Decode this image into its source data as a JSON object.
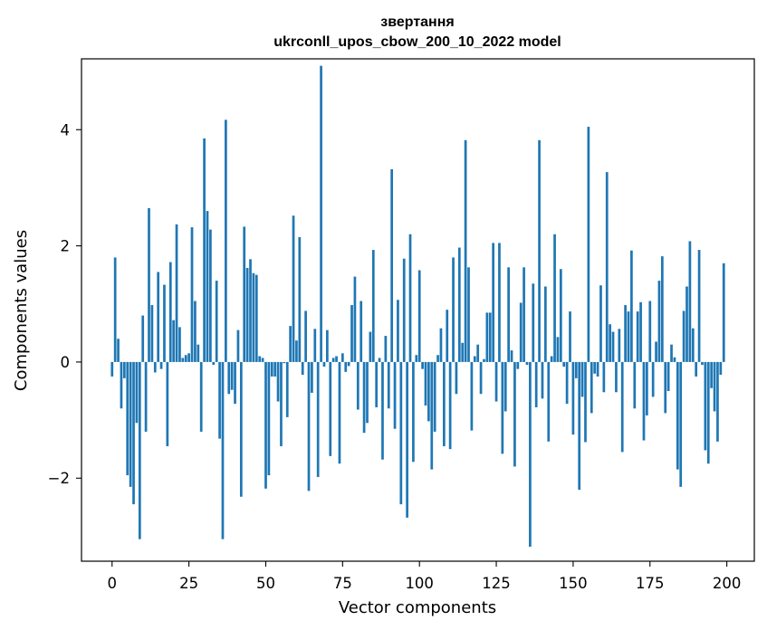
{
  "chart_data": {
    "type": "bar",
    "title_line1": "звертання",
    "title_line2": "ukrconll_upos_cbow_200_10_2022 model",
    "xlabel": "Vector components",
    "ylabel": "Components values",
    "xlim": [
      -9.95,
      208.95
    ],
    "ylim": [
      -3.43,
      5.22
    ],
    "xticks": [
      0,
      25,
      50,
      75,
      100,
      125,
      150,
      175,
      200
    ],
    "xtick_labels": [
      "0",
      "25",
      "50",
      "75",
      "100",
      "125",
      "150",
      "175",
      "200"
    ],
    "yticks": [
      -2,
      0,
      2,
      4
    ],
    "ytick_labels": [
      "−2",
      "0",
      "2",
      "4"
    ],
    "bar_color": "#1f77b4",
    "x": [
      0,
      1,
      2,
      3,
      4,
      5,
      6,
      7,
      8,
      9,
      10,
      11,
      12,
      13,
      14,
      15,
      16,
      17,
      18,
      19,
      20,
      21,
      22,
      23,
      24,
      25,
      26,
      27,
      28,
      29,
      30,
      31,
      32,
      33,
      34,
      35,
      36,
      37,
      38,
      39,
      40,
      41,
      42,
      43,
      44,
      45,
      46,
      47,
      48,
      49,
      50,
      51,
      52,
      53,
      54,
      55,
      56,
      57,
      58,
      59,
      60,
      61,
      62,
      63,
      64,
      65,
      66,
      67,
      68,
      69,
      70,
      71,
      72,
      73,
      74,
      75,
      76,
      77,
      78,
      79,
      80,
      81,
      82,
      83,
      84,
      85,
      86,
      87,
      88,
      89,
      90,
      91,
      92,
      93,
      94,
      95,
      96,
      97,
      98,
      99,
      100,
      101,
      102,
      103,
      104,
      105,
      106,
      107,
      108,
      109,
      110,
      111,
      112,
      113,
      114,
      115,
      116,
      117,
      118,
      119,
      120,
      121,
      122,
      123,
      124,
      125,
      126,
      127,
      128,
      129,
      130,
      131,
      132,
      133,
      134,
      135,
      136,
      137,
      138,
      139,
      140,
      141,
      142,
      143,
      144,
      145,
      146,
      147,
      148,
      149,
      150,
      151,
      152,
      153,
      154,
      155,
      156,
      157,
      158,
      159,
      160,
      161,
      162,
      163,
      164,
      165,
      166,
      167,
      168,
      169,
      170,
      171,
      172,
      173,
      174,
      175,
      176,
      177,
      178,
      179,
      180,
      181,
      182,
      183,
      184,
      185,
      186,
      187,
      188,
      189,
      190,
      191,
      192,
      193,
      194,
      195,
      196,
      197,
      198,
      199
    ],
    "values": [
      -0.25,
      1.8,
      0.4,
      -0.8,
      -0.28,
      -1.95,
      -2.15,
      -2.45,
      -1.05,
      -3.05,
      0.8,
      -1.2,
      2.65,
      0.98,
      -0.18,
      1.55,
      -0.12,
      1.33,
      -1.45,
      1.72,
      0.72,
      2.37,
      0.6,
      0.07,
      0.12,
      0.15,
      2.32,
      1.05,
      0.3,
      -1.2,
      3.85,
      2.6,
      2.28,
      -0.05,
      1.4,
      -1.32,
      -3.05,
      4.17,
      -0.55,
      -0.48,
      -0.72,
      0.55,
      -2.32,
      2.33,
      1.62,
      1.77,
      1.53,
      1.5,
      0.1,
      0.07,
      -2.18,
      -1.95,
      -0.25,
      -0.25,
      -0.68,
      -1.45,
      -0.02,
      -0.95,
      0.62,
      2.52,
      0.37,
      2.15,
      -0.22,
      0.88,
      -2.22,
      -0.53,
      0.57,
      -1.98,
      5.1,
      -0.08,
      0.55,
      -1.62,
      0.07,
      0.1,
      -1.75,
      0.15,
      -0.17,
      -0.07,
      0.98,
      1.47,
      -0.82,
      1.05,
      -1.22,
      -1.05,
      0.52,
      1.93,
      -0.78,
      0.07,
      -1.68,
      0.45,
      -0.8,
      3.32,
      -1.15,
      1.07,
      -2.45,
      1.78,
      -2.68,
      2.2,
      -1.72,
      0.12,
      1.58,
      -0.12,
      -0.75,
      -1.02,
      -1.85,
      -1.2,
      0.12,
      0.58,
      -1.45,
      0.9,
      -1.5,
      1.8,
      -0.55,
      1.97,
      0.33,
      3.82,
      1.63,
      -1.18,
      0.1,
      0.3,
      -0.55,
      0.05,
      0.85,
      0.85,
      2.05,
      -0.68,
      2.05,
      -1.58,
      -0.85,
      1.63,
      0.2,
      -1.8,
      -0.12,
      1.02,
      1.63,
      -0.05,
      -3.18,
      1.35,
      -0.78,
      3.82,
      -0.63,
      1.3,
      -1.37,
      0.1,
      2.2,
      0.43,
      1.6,
      -0.08,
      -0.72,
      0.87,
      -1.25,
      -0.28,
      -2.2,
      -0.6,
      -1.38,
      4.05,
      -0.88,
      -0.2,
      -0.25,
      1.32,
      -0.52,
      3.27,
      0.65,
      0.52,
      -0.52,
      0.57,
      -1.55,
      0.98,
      0.87,
      1.92,
      -0.8,
      0.87,
      1.03,
      -1.35,
      -0.92,
      1.05,
      -0.6,
      0.35,
      1.4,
      1.82,
      -0.88,
      -0.5,
      0.3,
      0.08,
      -1.85,
      -2.15,
      0.88,
      1.3,
      2.08,
      0.58,
      -0.25,
      1.93,
      -0.05,
      -1.52,
      -1.75,
      -0.45,
      -0.85,
      -1.37,
      -0.22,
      1.7
    ]
  }
}
